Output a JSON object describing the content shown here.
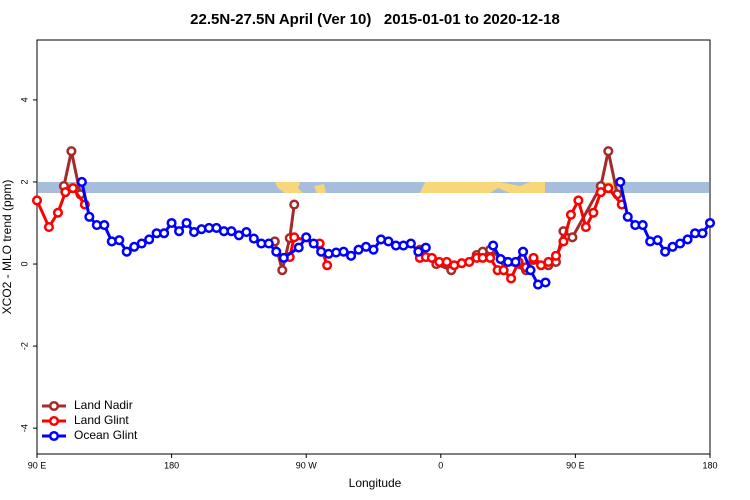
{
  "chart_data": {
    "type": "line",
    "title": "22.5N-27.5N April (Ver 10)   2015-01-01 to 2020-12-18",
    "x_label": "Longitude",
    "y_label": "XCO2 - MLO trend (ppm)",
    "xlim": [
      90,
      540
    ],
    "ylim": [
      -4.63,
      5.46
    ],
    "xticks": [
      {
        "value": 90,
        "label": "90 E"
      },
      {
        "value": 180,
        "label": "180"
      },
      {
        "value": 270,
        "label": "90 W"
      },
      {
        "value": 360,
        "label": "0"
      },
      {
        "value": 450,
        "label": "90 E"
      },
      {
        "value": 540,
        "label": "180"
      }
    ],
    "yticks": [
      -4,
      -2,
      0,
      2,
      4
    ],
    "legend": "bottomleft",
    "series": [
      {
        "name": "Land Nadir",
        "color": "#a52a2a",
        "x": [
          108,
          113,
          119,
          null,
          249,
          254,
          259,
          262,
          null,
          346,
          357,
          367,
          384,
          388,
          393,
          403,
          417,
          422,
          432,
          437,
          442,
          448,
          467,
          472,
          478
        ],
        "values": [
          1.9,
          2.75,
          1.7,
          null,
          0.55,
          -0.15,
          0.63,
          1.45,
          null,
          0.35,
          0.0,
          -0.15,
          0.22,
          0.3,
          0.35,
          0.05,
          -0.15,
          0.1,
          -0.03,
          0.05,
          0.8,
          0.65,
          1.9,
          2.75,
          1.7
        ]
      },
      {
        "name": "Land Glint",
        "color": "#ff0000",
        "x": [
          90,
          98,
          104,
          109,
          114,
          122,
          null,
          255,
          259,
          262,
          279,
          284,
          null,
          346,
          350,
          354,
          359,
          364,
          369,
          374,
          379,
          384,
          388,
          393,
          398,
          402,
          407,
          412,
          417,
          422,
          427,
          432,
          437,
          442,
          447,
          452,
          457,
          462,
          467,
          472,
          481
        ],
        "values": [
          1.55,
          0.9,
          1.25,
          1.75,
          1.85,
          1.45,
          null,
          0.15,
          0.17,
          0.65,
          0.5,
          -0.03,
          null,
          0.15,
          0.17,
          0.15,
          0.05,
          0.05,
          -0.03,
          0.02,
          0.05,
          0.15,
          0.15,
          0.15,
          -0.15,
          -0.15,
          -0.35,
          0.05,
          -0.08,
          0.15,
          -0.03,
          0.05,
          0.2,
          0.55,
          1.2,
          1.55,
          0.9,
          1.25,
          1.75,
          1.85,
          1.45
        ]
      },
      {
        "name": "Ocean Glint",
        "color": "#0000ff",
        "x": [
          120,
          125,
          130,
          135,
          140,
          145,
          150,
          155,
          160,
          165,
          170,
          175,
          180,
          185,
          190,
          195,
          200,
          205,
          210,
          215,
          220,
          225,
          230,
          235,
          240,
          245,
          250,
          255,
          265,
          270,
          275,
          280,
          285,
          290,
          295,
          300,
          305,
          310,
          315,
          320,
          325,
          330,
          335,
          340,
          345,
          350,
          null,
          395,
          400,
          405,
          410,
          415,
          420,
          425,
          430,
          null,
          480,
          485,
          490,
          495,
          500,
          505,
          510,
          515,
          520,
          525,
          530,
          535,
          540
        ],
        "values": [
          2.0,
          1.15,
          0.95,
          0.95,
          0.55,
          0.58,
          0.3,
          0.42,
          0.5,
          0.6,
          0.75,
          0.75,
          1.0,
          0.8,
          1.0,
          0.78,
          0.85,
          0.88,
          0.88,
          0.8,
          0.8,
          0.7,
          0.78,
          0.62,
          0.5,
          0.5,
          0.3,
          0.15,
          0.4,
          0.65,
          0.5,
          0.3,
          0.25,
          0.28,
          0.3,
          0.2,
          0.35,
          0.42,
          0.35,
          0.6,
          0.55,
          0.45,
          0.45,
          0.5,
          0.3,
          0.4,
          null,
          0.45,
          0.12,
          0.05,
          0.05,
          0.3,
          -0.15,
          -0.5,
          -0.45,
          null,
          2.0,
          1.15,
          0.95,
          0.95,
          0.55,
          0.58,
          0.3,
          0.42,
          0.5,
          0.6,
          0.75,
          0.75,
          1.0
        ]
      }
    ]
  }
}
